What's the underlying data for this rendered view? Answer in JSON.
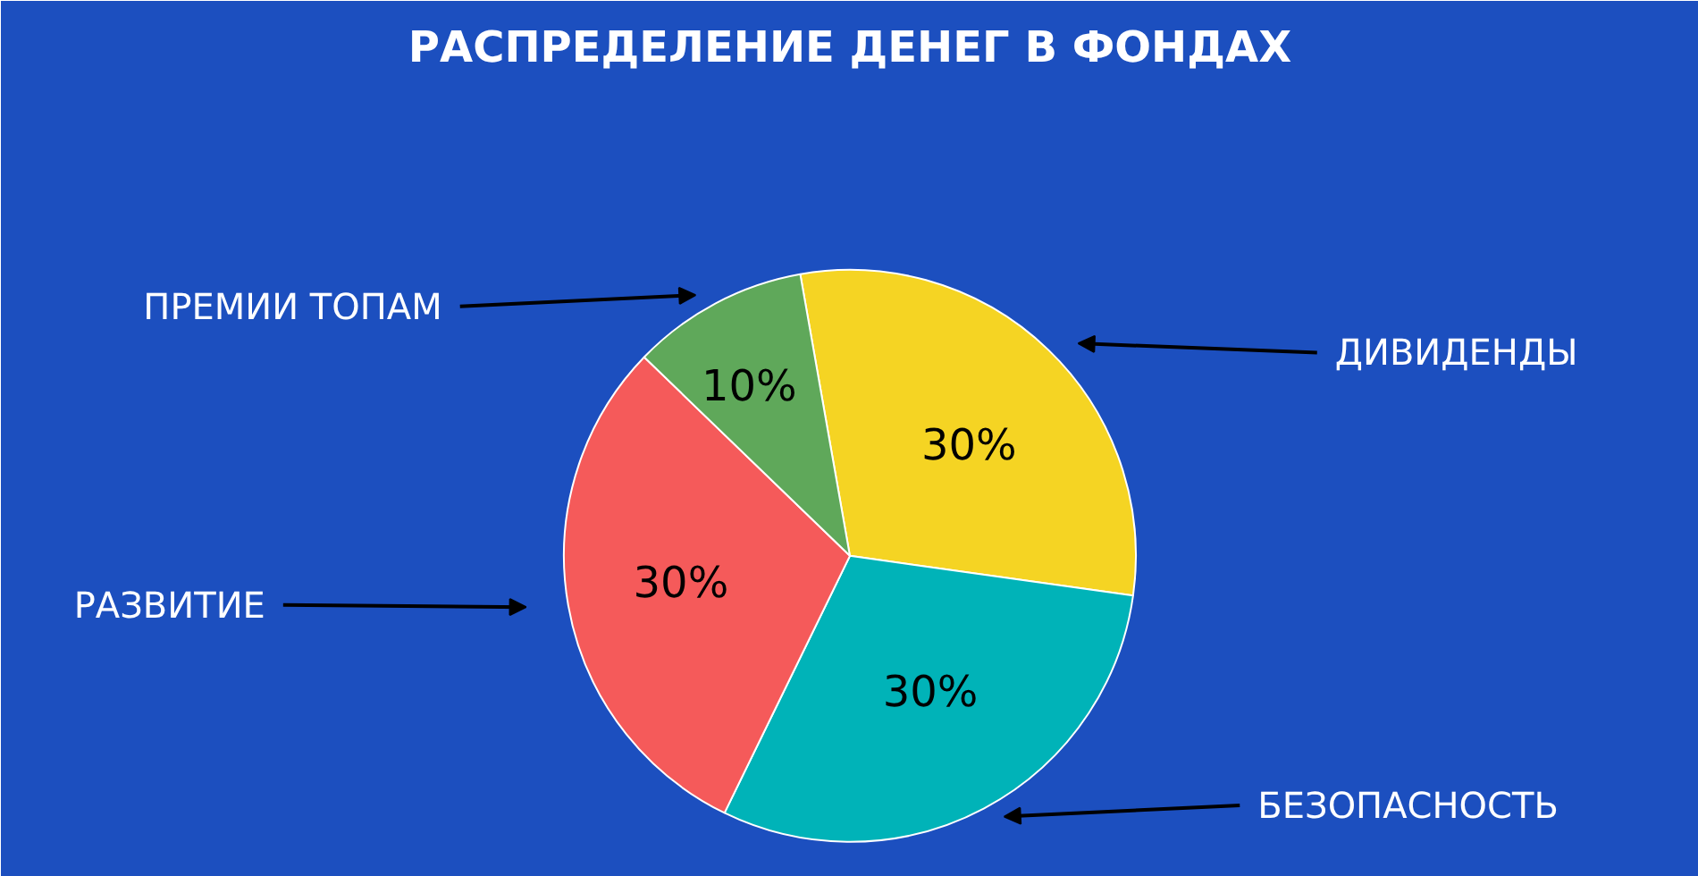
{
  "chart_data": {
    "type": "pie",
    "title": "РАСПРЕДЕЛЕНИЕ ДЕНЕГ В ФОНДАХ",
    "categories": [
      "ДИВИДЕНДЫ",
      "БЕЗОПАСНОСТЬ",
      "РАЗВИТИЕ",
      "ПРЕМИИ ТОПАМ"
    ],
    "values": [
      30,
      30,
      30,
      10
    ],
    "colors": [
      "#f5d423",
      "#00b3b8",
      "#f55a5a",
      "#5fa85a"
    ],
    "value_labels": [
      "30%",
      "30%",
      "30%",
      "10%"
    ]
  }
}
